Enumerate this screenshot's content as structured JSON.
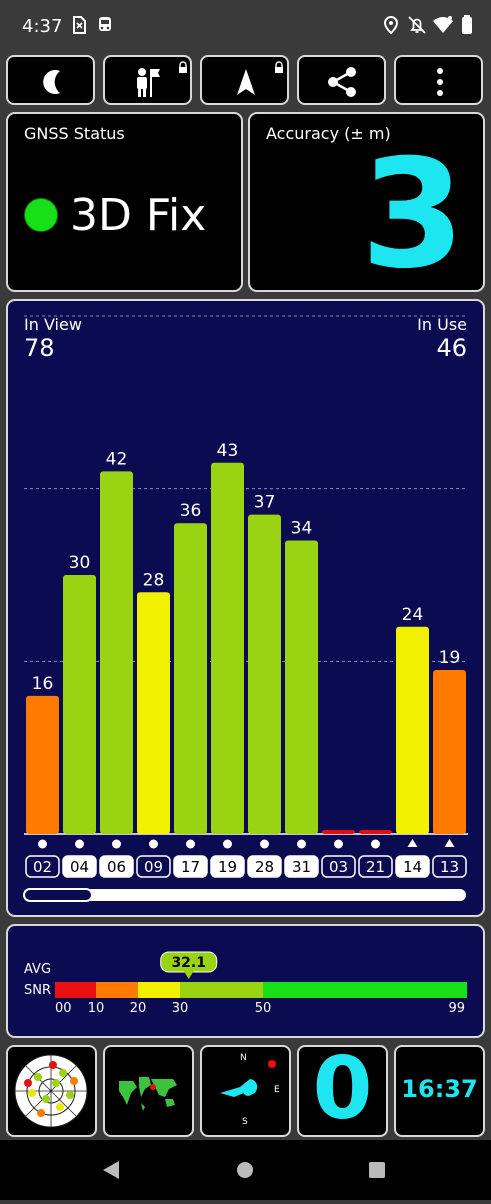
{
  "status_bar": {
    "time": "4:37"
  },
  "toolbar": {
    "buttons": [
      {
        "icon": "moon-icon"
      },
      {
        "icon": "person-flag-icon"
      },
      {
        "icon": "navigation-arrow-icon"
      },
      {
        "icon": "share-icon"
      },
      {
        "icon": "more-vert-icon"
      }
    ]
  },
  "gnss": {
    "label": "GNSS Status",
    "fix_text": "3D Fix",
    "fix_color": "#18e018"
  },
  "accuracy": {
    "label": "Accuracy (± m)",
    "value": "3",
    "color": "#1ee6f0"
  },
  "satellites": {
    "in_view_label": "In View",
    "in_view": "78",
    "in_use_label": "In Use",
    "in_use": "46"
  },
  "chart_data": {
    "type": "bar",
    "categories": [
      "02",
      "04",
      "06",
      "09",
      "17",
      "19",
      "28",
      "31",
      "03",
      "21",
      "14",
      "13"
    ],
    "values": [
      16,
      30,
      42,
      28,
      36,
      43,
      37,
      34,
      0,
      0,
      24,
      19
    ],
    "value_labels": [
      "16",
      "30",
      "42",
      "28",
      "36",
      "43",
      "37",
      "34",
      "",
      "",
      "24",
      "19"
    ],
    "markers": [
      "circle",
      "circle",
      "circle",
      "circle",
      "circle",
      "circle",
      "circle",
      "circle",
      "circle",
      "circle",
      "triangle",
      "triangle"
    ],
    "highlighted": [
      false,
      true,
      true,
      false,
      true,
      true,
      true,
      true,
      false,
      false,
      true,
      false
    ],
    "ylim": [
      0,
      60
    ],
    "gridlines": [
      20,
      40,
      60
    ]
  },
  "snr": {
    "avg_label": "AVG",
    "snr_label": "SNR",
    "avg_value": "32.1",
    "avg": 32.1,
    "ticks": [
      "00",
      "10",
      "20",
      "30",
      "50",
      "99"
    ],
    "tick_values": [
      0,
      10,
      20,
      30,
      50,
      99
    ]
  },
  "bottom_tiles": {
    "count": "0",
    "clock": "16:37",
    "compass": {
      "n": "N",
      "e": "E",
      "s": "S"
    }
  }
}
